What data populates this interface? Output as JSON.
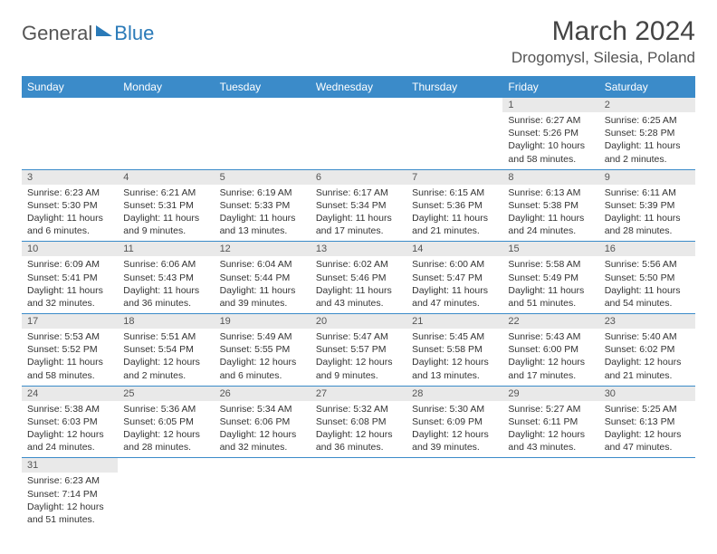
{
  "logo": {
    "part1": "General",
    "part2": "Blue"
  },
  "title": "March 2024",
  "location": "Drogomysl, Silesia, Poland",
  "colors": {
    "header_bg": "#3b8bc9",
    "header_text": "#ffffff",
    "daynum_bg": "#e9e9e9",
    "border": "#3b8bc9",
    "logo_accent": "#2a7ab8"
  },
  "weekdays": [
    "Sunday",
    "Monday",
    "Tuesday",
    "Wednesday",
    "Thursday",
    "Friday",
    "Saturday"
  ],
  "leading_blanks": 5,
  "days": [
    {
      "n": "1",
      "sunrise": "Sunrise: 6:27 AM",
      "sunset": "Sunset: 5:26 PM",
      "daylight": "Daylight: 10 hours and 58 minutes."
    },
    {
      "n": "2",
      "sunrise": "Sunrise: 6:25 AM",
      "sunset": "Sunset: 5:28 PM",
      "daylight": "Daylight: 11 hours and 2 minutes."
    },
    {
      "n": "3",
      "sunrise": "Sunrise: 6:23 AM",
      "sunset": "Sunset: 5:30 PM",
      "daylight": "Daylight: 11 hours and 6 minutes."
    },
    {
      "n": "4",
      "sunrise": "Sunrise: 6:21 AM",
      "sunset": "Sunset: 5:31 PM",
      "daylight": "Daylight: 11 hours and 9 minutes."
    },
    {
      "n": "5",
      "sunrise": "Sunrise: 6:19 AM",
      "sunset": "Sunset: 5:33 PM",
      "daylight": "Daylight: 11 hours and 13 minutes."
    },
    {
      "n": "6",
      "sunrise": "Sunrise: 6:17 AM",
      "sunset": "Sunset: 5:34 PM",
      "daylight": "Daylight: 11 hours and 17 minutes."
    },
    {
      "n": "7",
      "sunrise": "Sunrise: 6:15 AM",
      "sunset": "Sunset: 5:36 PM",
      "daylight": "Daylight: 11 hours and 21 minutes."
    },
    {
      "n": "8",
      "sunrise": "Sunrise: 6:13 AM",
      "sunset": "Sunset: 5:38 PM",
      "daylight": "Daylight: 11 hours and 24 minutes."
    },
    {
      "n": "9",
      "sunrise": "Sunrise: 6:11 AM",
      "sunset": "Sunset: 5:39 PM",
      "daylight": "Daylight: 11 hours and 28 minutes."
    },
    {
      "n": "10",
      "sunrise": "Sunrise: 6:09 AM",
      "sunset": "Sunset: 5:41 PM",
      "daylight": "Daylight: 11 hours and 32 minutes."
    },
    {
      "n": "11",
      "sunrise": "Sunrise: 6:06 AM",
      "sunset": "Sunset: 5:43 PM",
      "daylight": "Daylight: 11 hours and 36 minutes."
    },
    {
      "n": "12",
      "sunrise": "Sunrise: 6:04 AM",
      "sunset": "Sunset: 5:44 PM",
      "daylight": "Daylight: 11 hours and 39 minutes."
    },
    {
      "n": "13",
      "sunrise": "Sunrise: 6:02 AM",
      "sunset": "Sunset: 5:46 PM",
      "daylight": "Daylight: 11 hours and 43 minutes."
    },
    {
      "n": "14",
      "sunrise": "Sunrise: 6:00 AM",
      "sunset": "Sunset: 5:47 PM",
      "daylight": "Daylight: 11 hours and 47 minutes."
    },
    {
      "n": "15",
      "sunrise": "Sunrise: 5:58 AM",
      "sunset": "Sunset: 5:49 PM",
      "daylight": "Daylight: 11 hours and 51 minutes."
    },
    {
      "n": "16",
      "sunrise": "Sunrise: 5:56 AM",
      "sunset": "Sunset: 5:50 PM",
      "daylight": "Daylight: 11 hours and 54 minutes."
    },
    {
      "n": "17",
      "sunrise": "Sunrise: 5:53 AM",
      "sunset": "Sunset: 5:52 PM",
      "daylight": "Daylight: 11 hours and 58 minutes."
    },
    {
      "n": "18",
      "sunrise": "Sunrise: 5:51 AM",
      "sunset": "Sunset: 5:54 PM",
      "daylight": "Daylight: 12 hours and 2 minutes."
    },
    {
      "n": "19",
      "sunrise": "Sunrise: 5:49 AM",
      "sunset": "Sunset: 5:55 PM",
      "daylight": "Daylight: 12 hours and 6 minutes."
    },
    {
      "n": "20",
      "sunrise": "Sunrise: 5:47 AM",
      "sunset": "Sunset: 5:57 PM",
      "daylight": "Daylight: 12 hours and 9 minutes."
    },
    {
      "n": "21",
      "sunrise": "Sunrise: 5:45 AM",
      "sunset": "Sunset: 5:58 PM",
      "daylight": "Daylight: 12 hours and 13 minutes."
    },
    {
      "n": "22",
      "sunrise": "Sunrise: 5:43 AM",
      "sunset": "Sunset: 6:00 PM",
      "daylight": "Daylight: 12 hours and 17 minutes."
    },
    {
      "n": "23",
      "sunrise": "Sunrise: 5:40 AM",
      "sunset": "Sunset: 6:02 PM",
      "daylight": "Daylight: 12 hours and 21 minutes."
    },
    {
      "n": "24",
      "sunrise": "Sunrise: 5:38 AM",
      "sunset": "Sunset: 6:03 PM",
      "daylight": "Daylight: 12 hours and 24 minutes."
    },
    {
      "n": "25",
      "sunrise": "Sunrise: 5:36 AM",
      "sunset": "Sunset: 6:05 PM",
      "daylight": "Daylight: 12 hours and 28 minutes."
    },
    {
      "n": "26",
      "sunrise": "Sunrise: 5:34 AM",
      "sunset": "Sunset: 6:06 PM",
      "daylight": "Daylight: 12 hours and 32 minutes."
    },
    {
      "n": "27",
      "sunrise": "Sunrise: 5:32 AM",
      "sunset": "Sunset: 6:08 PM",
      "daylight": "Daylight: 12 hours and 36 minutes."
    },
    {
      "n": "28",
      "sunrise": "Sunrise: 5:30 AM",
      "sunset": "Sunset: 6:09 PM",
      "daylight": "Daylight: 12 hours and 39 minutes."
    },
    {
      "n": "29",
      "sunrise": "Sunrise: 5:27 AM",
      "sunset": "Sunset: 6:11 PM",
      "daylight": "Daylight: 12 hours and 43 minutes."
    },
    {
      "n": "30",
      "sunrise": "Sunrise: 5:25 AM",
      "sunset": "Sunset: 6:13 PM",
      "daylight": "Daylight: 12 hours and 47 minutes."
    },
    {
      "n": "31",
      "sunrise": "Sunrise: 6:23 AM",
      "sunset": "Sunset: 7:14 PM",
      "daylight": "Daylight: 12 hours and 51 minutes."
    }
  ]
}
